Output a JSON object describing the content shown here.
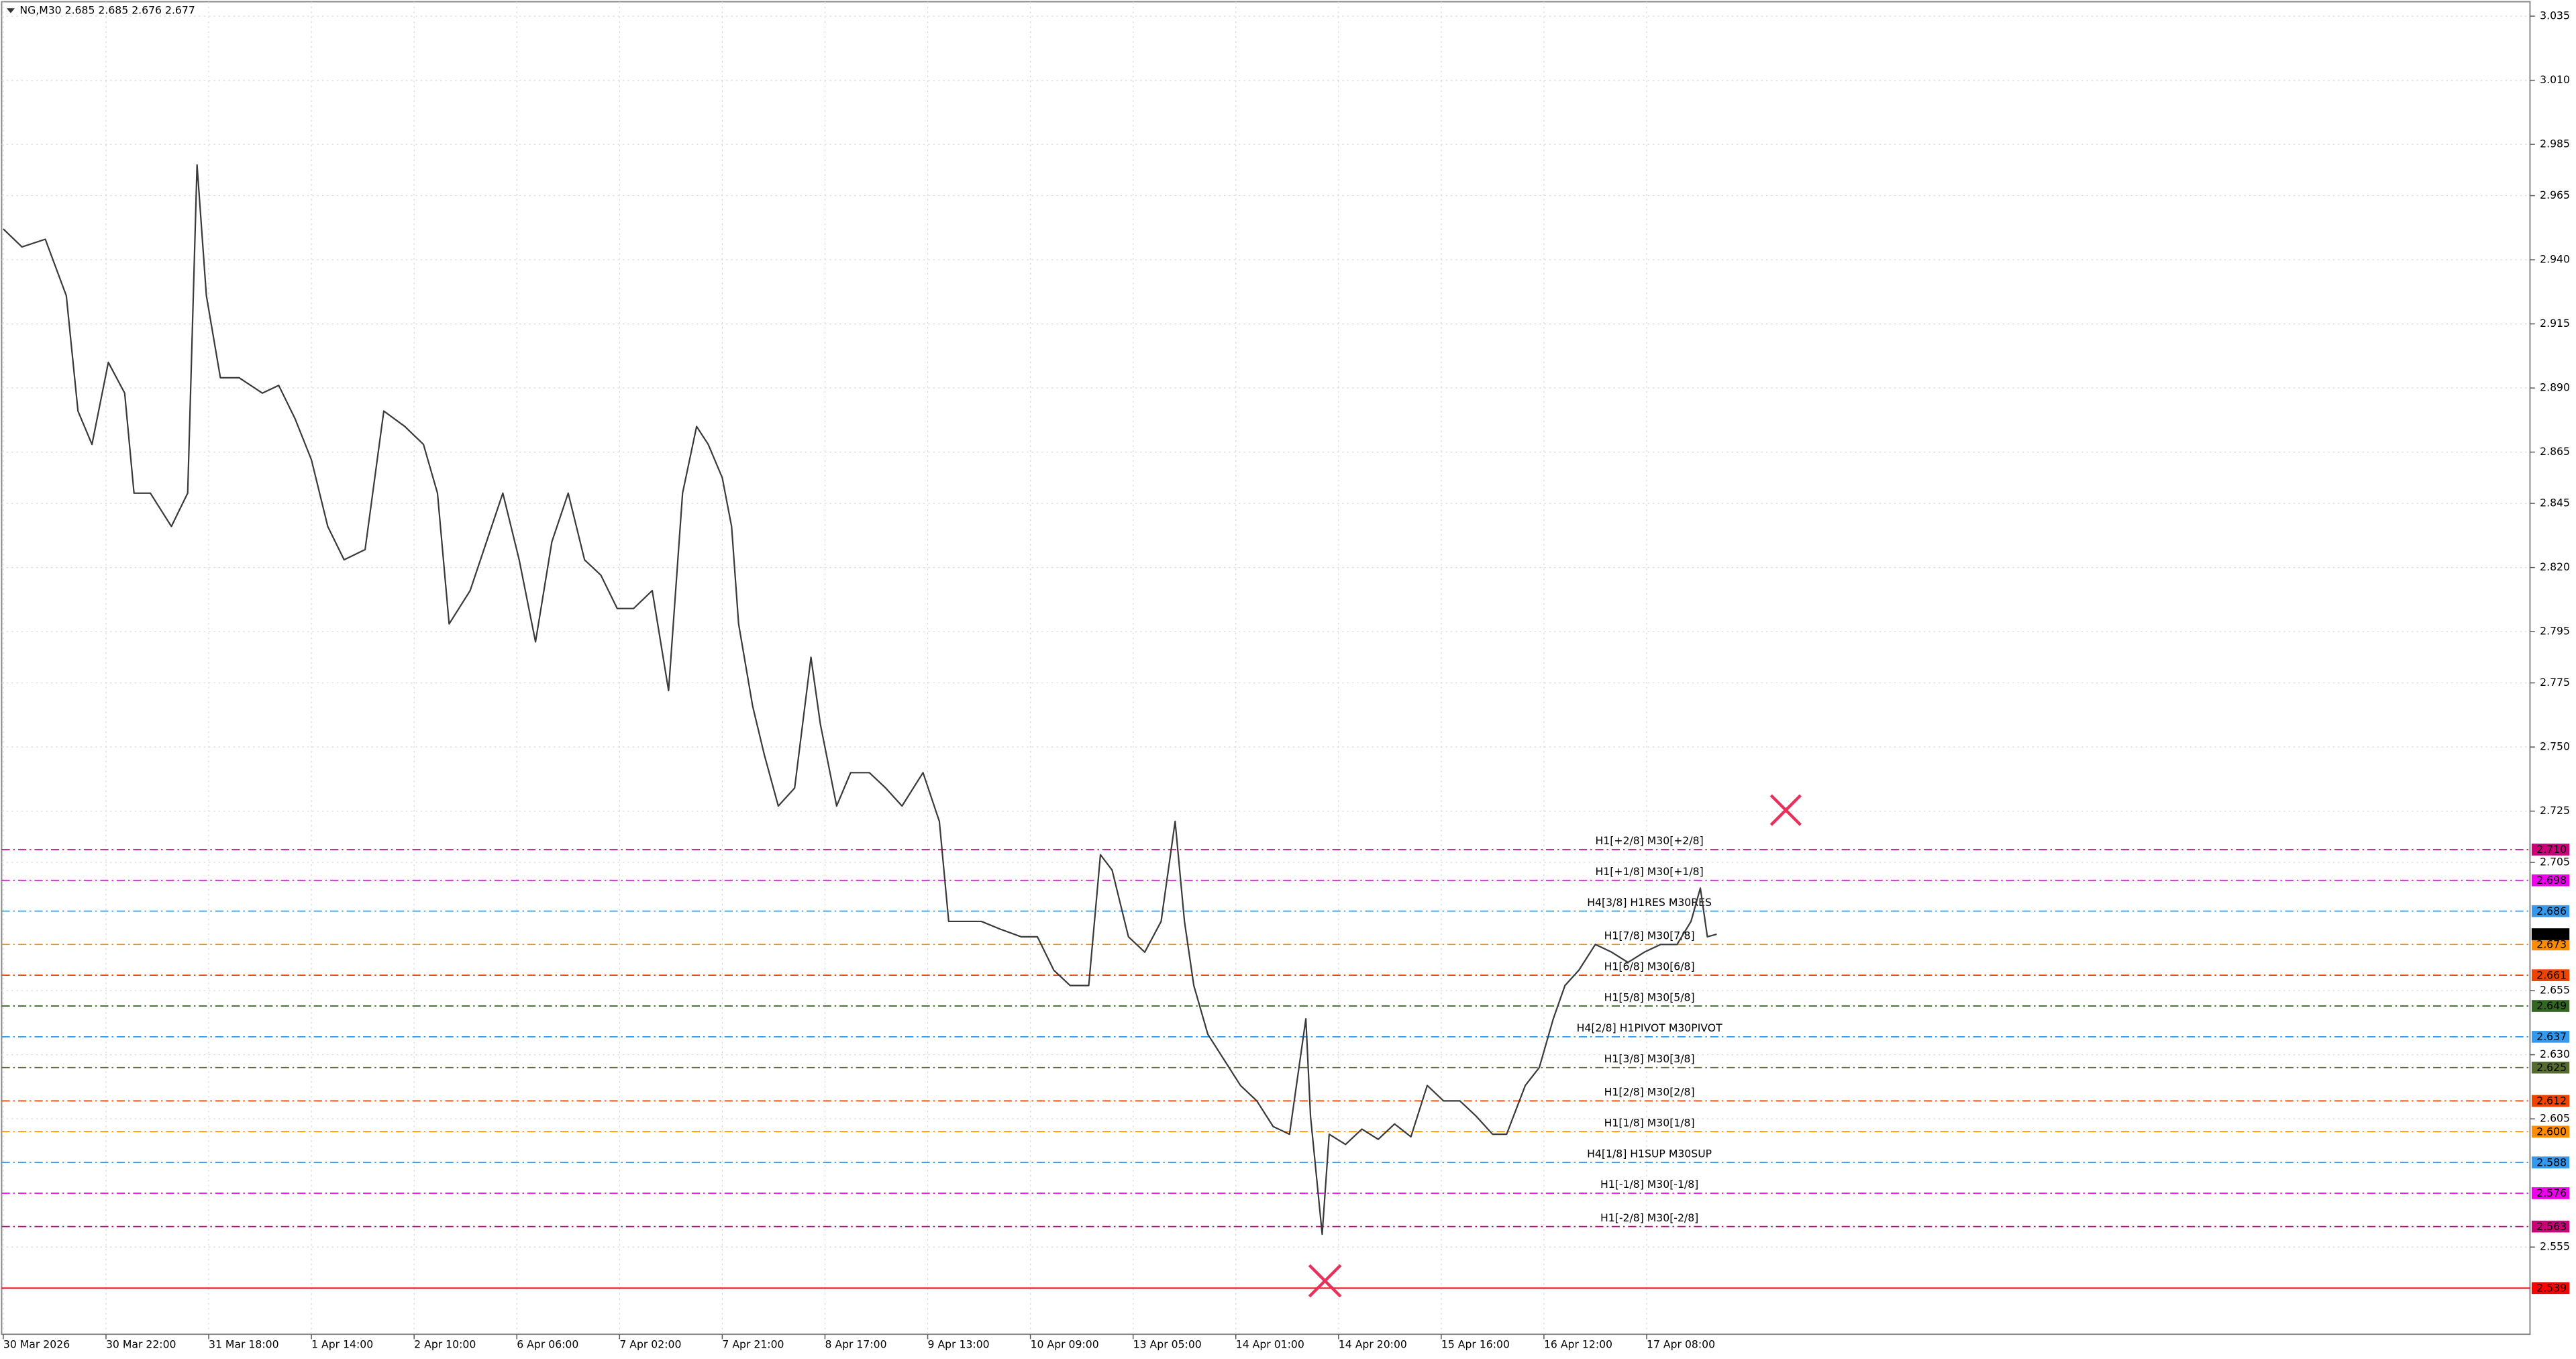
{
  "chart_data": {
    "type": "line",
    "title": "NG,M30  2.685 2.685 2.676 2.677",
    "x": [
      0,
      8,
      18,
      27,
      32,
      38,
      45,
      52,
      56,
      63,
      72,
      79,
      83,
      87,
      93,
      101,
      111,
      118,
      125,
      132,
      139,
      146,
      155,
      163,
      172,
      180,
      186,
      191,
      200,
      207,
      214,
      221,
      228,
      235,
      242,
      249,
      256,
      263,
      270,
      278,
      285,
      291,
      297,
      302,
      308,
      312,
      315,
      321,
      326,
      332,
      339,
      346,
      350,
      357,
      363,
      371,
      378,
      385,
      394,
      401,
      405,
      410,
      419,
      427,
      436,
      443,
      450,
      457,
      465,
      470,
      475,
      482,
      489,
      496,
      502,
      506,
      510,
      516,
      523,
      530,
      537,
      544,
      551,
      558,
      560,
      565,
      568,
      575,
      582,
      589,
      596,
      603,
      610,
      617,
      624,
      631,
      638,
      644,
      652,
      658,
      664,
      669,
      675,
      682,
      689,
      696,
      703,
      710,
      717,
      723,
      727,
      730,
      734
    ],
    "series": [
      {
        "name": "NG,M30",
        "color": "#3a3a3a",
        "values": [
          2.952,
          2.945,
          2.948,
          2.926,
          2.881,
          2.868,
          2.9,
          2.888,
          2.849,
          2.849,
          2.836,
          2.849,
          2.977,
          2.926,
          2.894,
          2.894,
          2.888,
          2.891,
          2.878,
          2.862,
          2.836,
          2.823,
          2.827,
          2.881,
          2.875,
          2.868,
          2.849,
          2.798,
          2.811,
          2.83,
          2.849,
          2.823,
          2.791,
          2.83,
          2.849,
          2.823,
          2.817,
          2.804,
          2.804,
          2.811,
          2.772,
          2.849,
          2.875,
          2.868,
          2.855,
          2.836,
          2.798,
          2.766,
          2.747,
          2.727,
          2.734,
          2.785,
          2.759,
          2.727,
          2.74,
          2.74,
          2.734,
          2.727,
          2.74,
          2.721,
          2.682,
          2.682,
          2.682,
          2.679,
          2.676,
          2.676,
          2.663,
          2.657,
          2.657,
          2.708,
          2.702,
          2.676,
          2.67,
          2.682,
          2.721,
          2.682,
          2.657,
          2.638,
          2.628,
          2.618,
          2.612,
          2.602,
          2.599,
          2.644,
          2.606,
          2.56,
          2.599,
          2.595,
          2.601,
          2.597,
          2.603,
          2.598,
          2.618,
          2.612,
          2.612,
          2.606,
          2.599,
          2.599,
          2.618,
          2.625,
          2.644,
          2.657,
          2.663,
          2.673,
          2.67,
          2.666,
          2.67,
          2.673,
          2.673,
          2.682,
          2.695,
          2.676,
          2.677
        ]
      }
    ],
    "xlim": [
      0,
      1081
    ],
    "xticks": [
      {
        "value": 0,
        "label": "30 Mar 2026"
      },
      {
        "value": 44,
        "label": "30 Mar 22:00"
      },
      {
        "value": 88,
        "label": "31 Mar 18:00"
      },
      {
        "value": 132,
        "label": "1 Apr 14:00"
      },
      {
        "value": 176,
        "label": "2 Apr 10:00"
      },
      {
        "value": 220,
        "label": "6 Apr 06:00"
      },
      {
        "value": 264,
        "label": "7 Apr 02:00"
      },
      {
        "value": 308,
        "label": "7 Apr 21:00"
      },
      {
        "value": 352,
        "label": "8 Apr 17:00"
      },
      {
        "value": 396,
        "label": "9 Apr 13:00"
      },
      {
        "value": 440,
        "label": "10 Apr 09:00"
      },
      {
        "value": 484,
        "label": "13 Apr 05:00"
      },
      {
        "value": 528,
        "label": "14 Apr 01:00"
      },
      {
        "value": 572,
        "label": "14 Apr 20:00"
      },
      {
        "value": 616,
        "label": "15 Apr 16:00"
      },
      {
        "value": 660,
        "label": "16 Apr 12:00"
      },
      {
        "value": 704,
        "label": "17 Apr 08:00"
      }
    ],
    "ylim": [
      2.521,
      3.04
    ],
    "yticks": [
      {
        "value": 3.035,
        "label": "3.035"
      },
      {
        "value": 3.01,
        "label": "3.010"
      },
      {
        "value": 2.985,
        "label": "2.985"
      },
      {
        "value": 2.965,
        "label": "2.965"
      },
      {
        "value": 2.94,
        "label": "2.940"
      },
      {
        "value": 2.915,
        "label": "2.915"
      },
      {
        "value": 2.89,
        "label": "2.890"
      },
      {
        "value": 2.865,
        "label": "2.865"
      },
      {
        "value": 2.845,
        "label": "2.845"
      },
      {
        "value": 2.82,
        "label": "2.820"
      },
      {
        "value": 2.795,
        "label": "2.795"
      },
      {
        "value": 2.775,
        "label": "2.775"
      },
      {
        "value": 2.75,
        "label": "2.750"
      },
      {
        "value": 2.725,
        "label": "2.725"
      },
      {
        "value": 2.705,
        "label": "2.705"
      },
      {
        "value": 2.655,
        "label": "2.655"
      },
      {
        "value": 2.63,
        "label": "2.630"
      },
      {
        "value": 2.605,
        "label": "2.605"
      },
      {
        "value": 2.555,
        "label": "2.555"
      }
    ],
    "grid": true,
    "levels": [
      {
        "label": "H1[+2/8] M30[+2/8]",
        "value": 2.71,
        "tag": "2.710",
        "color": "#cc0077"
      },
      {
        "label": "H1[+1/8] M30[+1/8]",
        "value": 2.698,
        "color": "#ee00ee"
      },
      {
        "label": "H4[3/8] H1RES M30RES",
        "value": 2.686,
        "color": "#3399ee"
      },
      {
        "label": "H1[7/8] M30[7/8]",
        "value": 2.673,
        "color": "#ff8c00"
      },
      {
        "label": "H1[6/8] M30[6/8]",
        "value": 2.661,
        "color": "#ee4400"
      },
      {
        "label": "H1[5/8] M30[5/8]",
        "value": 2.649,
        "color": "#336622"
      },
      {
        "label": "H4[2/8] H1PIVOT M30PIVOT",
        "value": 2.637,
        "color": "#3399ee"
      },
      {
        "label": "H1[3/8] M30[3/8]",
        "value": 2.625,
        "color": "#556b2f"
      },
      {
        "label": "H1[2/8] M30[2/8]",
        "value": 2.612,
        "color": "#ee4400"
      },
      {
        "label": "H1[1/8] M30[1/8]",
        "value": 2.6,
        "tag": "2.600",
        "color": "#ff8c00"
      },
      {
        "label": "H4[1/8] H1SUP M30SUP",
        "value": 2.588,
        "color": "#3399ee"
      },
      {
        "label": "H1[-1/8] M30[-1/8]",
        "value": 2.576,
        "color": "#ee00ee"
      },
      {
        "label": "H1[-2/8] M30[-2/8]",
        "value": 2.563,
        "color": "#cc0077"
      }
    ],
    "stop_line": {
      "value": 2.539,
      "color": "#ff0000"
    },
    "current_price": 2.677
  }
}
